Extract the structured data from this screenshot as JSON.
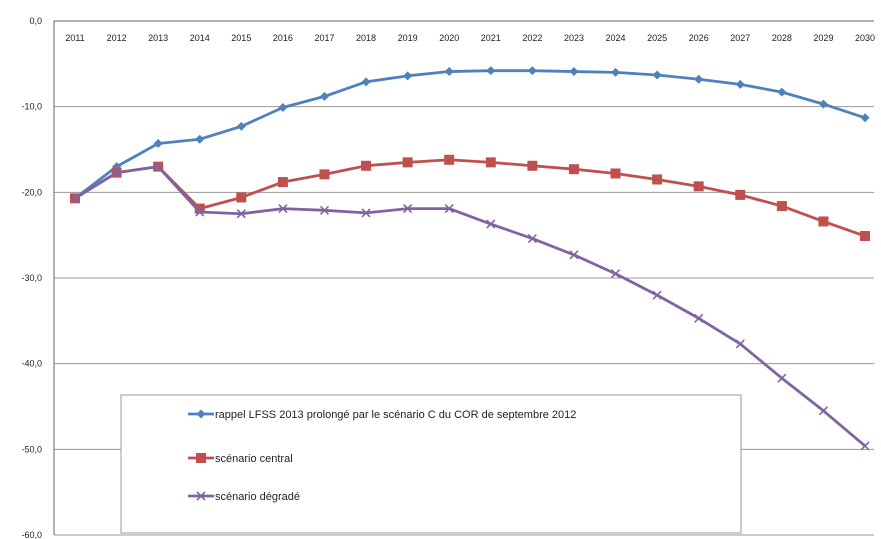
{
  "chart_data": {
    "type": "line",
    "x": [
      "2011",
      "2012",
      "2013",
      "2014",
      "2015",
      "2016",
      "2017",
      "2018",
      "2019",
      "2020",
      "2021",
      "2022",
      "2023",
      "2024",
      "2025",
      "2026",
      "2027",
      "2028",
      "2029",
      "2030"
    ],
    "ylim": [
      -60,
      0
    ],
    "yticks": [
      "0,0",
      "-10,0",
      "-20,0",
      "-30,0",
      "-40,0",
      "-50,0",
      "-60,0"
    ],
    "ytick_values": [
      0,
      -10,
      -20,
      -30,
      -40,
      -50,
      -60
    ],
    "grid": true,
    "legend_position": "bottom-left",
    "series": [
      {
        "name": "rappel LFSS 2013 prolongé par le scénario C du COR de septembre 2012",
        "color": "#4F81BD",
        "marker": "diamond",
        "values": [
          -20.7,
          -17.0,
          -14.3,
          -13.8,
          -12.3,
          -10.1,
          -8.8,
          -7.1,
          -6.4,
          -5.9,
          -5.8,
          -5.8,
          -5.9,
          -6.0,
          -6.3,
          -6.8,
          -7.4,
          -8.3,
          -9.7,
          -11.3
        ]
      },
      {
        "name": "scénario central",
        "color": "#C0504D",
        "marker": "square",
        "values": [
          -20.7,
          -17.7,
          -17.0,
          -21.9,
          -20.6,
          -18.8,
          -17.9,
          -16.9,
          -16.5,
          -16.2,
          -16.5,
          -16.9,
          -17.3,
          -17.8,
          -18.5,
          -19.3,
          -20.3,
          -21.6,
          -23.4,
          -25.1
        ]
      },
      {
        "name": "scénario dégradé",
        "color": "#8064A2",
        "marker": "x",
        "values": [
          -20.7,
          -17.7,
          -17.0,
          -22.3,
          -22.5,
          -21.9,
          -22.1,
          -22.4,
          -21.9,
          -21.9,
          -23.7,
          -25.4,
          -27.3,
          -29.5,
          -32.0,
          -34.7,
          -37.7,
          -41.7,
          -45.5,
          -49.6
        ]
      }
    ]
  }
}
